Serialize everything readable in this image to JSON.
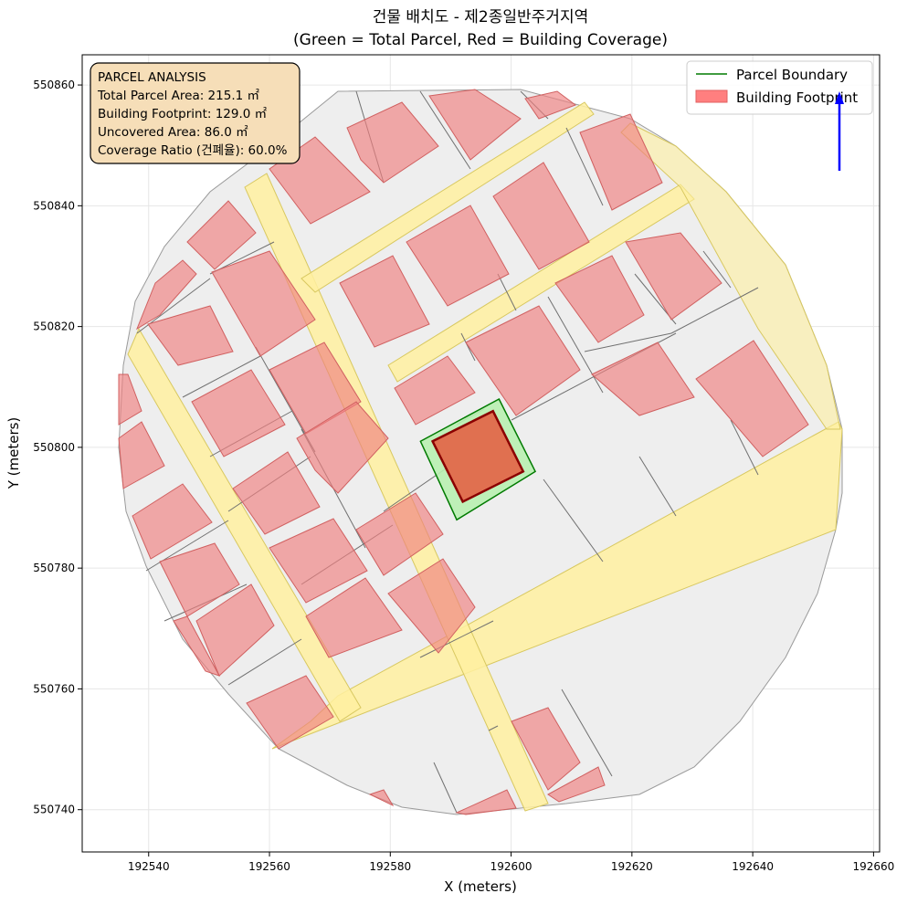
{
  "chart_data": {
    "type": "map",
    "title": "건물 배치도 - 제2종일반주거지역",
    "subtitle": "(Green = Total Parcel, Red = Building Coverage)",
    "xlabel": "X (meters)",
    "ylabel": "Y (meters)",
    "xlim": [
      192529,
      192661
    ],
    "ylim": [
      550733,
      550865
    ],
    "xticks": [
      192540,
      192560,
      192580,
      192600,
      192620,
      192640,
      192660
    ],
    "yticks": [
      550740,
      550760,
      550780,
      550800,
      550820,
      550840,
      550860
    ],
    "grid": true,
    "colors": {
      "parcel_boundary": "#007a00",
      "parcel_fill": "#b8f0b0",
      "building_fill": "#e07050",
      "building_edge": "#8b0000",
      "context_building": "#f08080",
      "road": "#fff0a0",
      "block": "#eeeeee",
      "north_arrow": "#0000ff"
    },
    "target_parcel": [
      [
        192585,
        550801
      ],
      [
        192598,
        550808
      ],
      [
        192604,
        550796
      ],
      [
        192591,
        550788
      ]
    ],
    "target_building": [
      [
        192587,
        550801
      ],
      [
        192597,
        550806
      ],
      [
        192602,
        550796
      ],
      [
        192592,
        550791
      ]
    ],
    "info_box": {
      "lines": [
        "PARCEL ANALYSIS",
        "Total Parcel Area: 215.1 ㎡",
        "Building Footprint: 129.0 ㎡",
        "Uncovered Area: 86.0 ㎡",
        "Coverage Ratio (건폐율): 60.0%"
      ],
      "total_parcel_area": 215.1,
      "building_footprint": 129.0,
      "uncovered_area": 86.0,
      "coverage_ratio": 60.0,
      "placement": "top-left"
    },
    "legend": {
      "placement": "top-right",
      "entries": [
        "Parcel Boundary",
        "Building Footprint"
      ]
    }
  }
}
